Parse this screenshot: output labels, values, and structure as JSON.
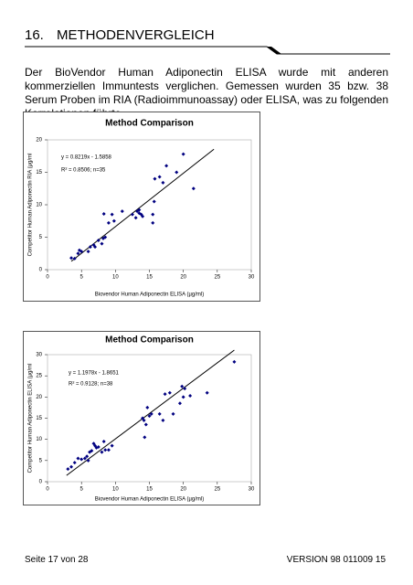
{
  "header": {
    "number": "16.",
    "title": "METHODENVERGLEICH"
  },
  "paragraph": "Der BioVendor Human Adiponectin ELISA wurde mit anderen kommerziellen Immuntests verglichen. Gemessen wurden 35 bzw. 38 Serum Proben im RIA (Radioimmunoassay) oder ELISA, was zu folgenden Korrelationen führte.",
  "chart_data": [
    {
      "type": "scatter",
      "title": "Method Comparison",
      "x_label": "Biovendor Human Adiponectin ELISA (µg/ml)",
      "y_label": "Competitor Human Adiponectin RIA (µg/ml",
      "annotations": [
        "y = 0.8219x - 1.5858",
        "R² = 0.8506; n=35"
      ],
      "color": "#000080",
      "x": [
        3.5,
        4,
        4.5,
        4.7,
        5,
        6,
        6.3,
        6.8,
        7,
        7.5,
        8,
        8.2,
        8.3,
        8.5,
        9,
        9.5,
        9.8,
        11,
        12.5,
        13,
        13.2,
        13.5,
        13.8,
        14,
        15.5,
        15.5,
        15.7,
        15.8,
        16.5,
        17,
        17.5,
        19,
        20,
        21.5,
        13.5
      ],
      "values": [
        1.8,
        1.7,
        2.5,
        3,
        2.8,
        2.8,
        3.5,
        3.8,
        3.5,
        4.5,
        4,
        4.8,
        8.6,
        5,
        7.2,
        8.5,
        7.5,
        9,
        8.5,
        8,
        9,
        9.2,
        8.5,
        8.2,
        7.2,
        8.5,
        10.5,
        14,
        14.3,
        13.4,
        16,
        15,
        17.8,
        12.5,
        8.7
      ],
      "trendline": {
        "slope": 0.8219,
        "intercept": -1.5858,
        "x": [
          3.5,
          24.5
        ]
      },
      "xlim": [
        0,
        30
      ],
      "xticks": [
        0,
        5,
        10,
        15,
        20,
        25,
        30
      ],
      "ylim": [
        0,
        20
      ],
      "yticks": [
        0,
        5,
        10,
        15,
        20
      ]
    },
    {
      "type": "scatter",
      "title": "Method Comparison",
      "x_label": "Biovendor Human Adiponectin ELISA (µg/ml)",
      "y_label": "Competitor Human Adiponectin ELISA (µg/ml",
      "annotations": [
        "y = 1.1978x - 1.8651",
        "R² = 0.9128; n=38"
      ],
      "color": "#000080",
      "x": [
        3,
        3.5,
        4,
        4.5,
        5,
        5.5,
        5.8,
        6,
        6.2,
        6.5,
        6.8,
        7,
        7.2,
        7.5,
        8,
        8.3,
        8.5,
        9,
        9.5,
        14,
        14.2,
        14.3,
        14.5,
        14.7,
        15,
        15.3,
        16.5,
        17,
        17.3,
        18,
        18.5,
        19.5,
        19.8,
        20,
        20.2,
        21,
        23.5,
        27.5
      ],
      "values": [
        3,
        3.5,
        4.5,
        5.5,
        5.3,
        5.5,
        6,
        5,
        7,
        7.3,
        9,
        8.5,
        8,
        8.2,
        7,
        9.5,
        7.5,
        7.5,
        8.5,
        15,
        14.5,
        10.5,
        13.5,
        17.5,
        15.5,
        16,
        16,
        14.5,
        20.7,
        21,
        16,
        18.5,
        22.5,
        20,
        22,
        20.3,
        21,
        28.3
      ],
      "trendline": {
        "slope": 1.1978,
        "intercept": -1.8651,
        "x": [
          2.8,
          27.5
        ]
      },
      "xlim": [
        0,
        30
      ],
      "xticks": [
        0,
        5,
        10,
        15,
        20,
        25,
        30
      ],
      "ylim": [
        0,
        30
      ],
      "yticks": [
        0,
        5,
        10,
        15,
        20,
        25,
        30
      ]
    }
  ],
  "footer": {
    "left": "Seite 17 von 28",
    "right": "VERSION 98 011009 15"
  }
}
